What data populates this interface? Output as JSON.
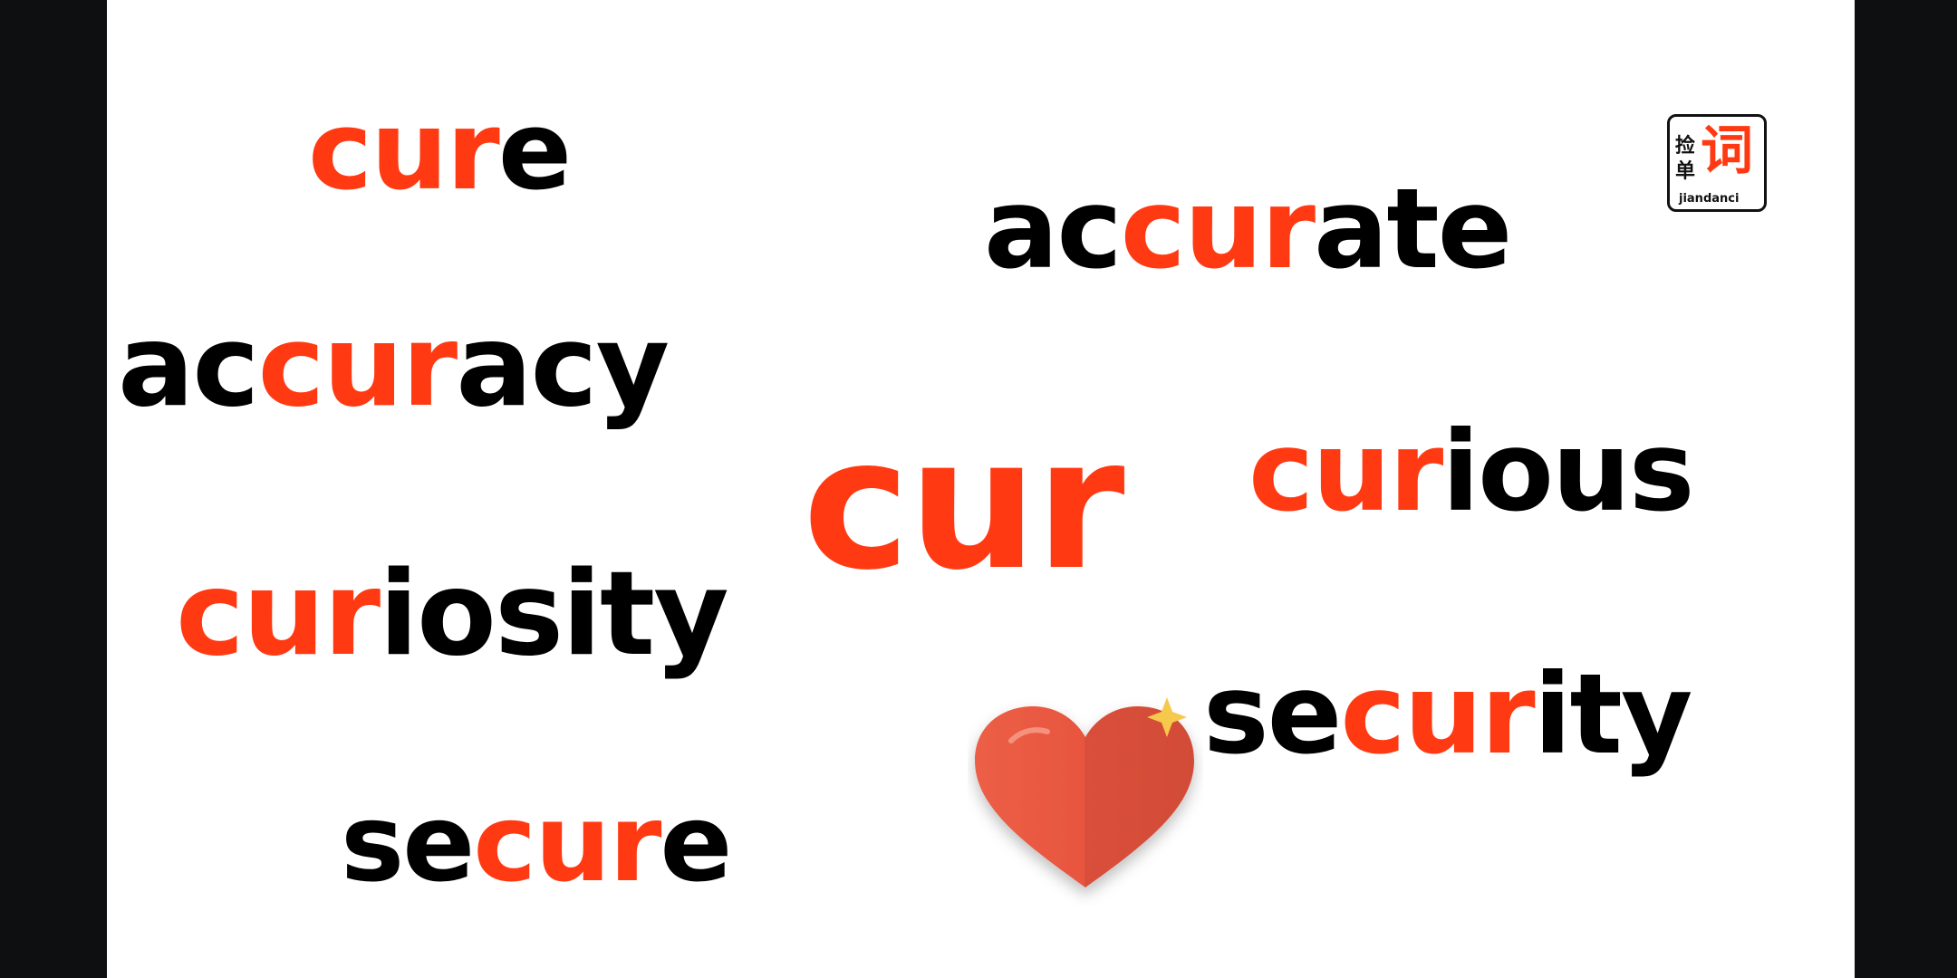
{
  "words": {
    "cure": {
      "hl": "cur",
      "rest": "e"
    },
    "accurate": {
      "pre": "ac",
      "hl": "cur",
      "rest": "ate"
    },
    "accuracy": {
      "pre": "ac",
      "hl": "cur",
      "rest": "acy"
    },
    "root": {
      "hl": "cur"
    },
    "curious": {
      "hl": "cur",
      "rest": "ious"
    },
    "curiosity": {
      "hl": "cur",
      "rest": "iosity"
    },
    "security": {
      "pre": "se",
      "hl": "cur",
      "rest": "ity"
    },
    "secure": {
      "pre": "se",
      "hl": "cur",
      "rest": "e"
    }
  },
  "logo": {
    "char1": "捡",
    "char2": "单",
    "char3": "词",
    "pinyin": "jiandanci"
  },
  "colors": {
    "highlight": "#ff3a13",
    "text": "#000000",
    "heart": "#e8563f",
    "sparkle": "#f6c84c"
  },
  "icons": {
    "heart": "heart-icon",
    "sparkle": "sparkle-icon"
  }
}
